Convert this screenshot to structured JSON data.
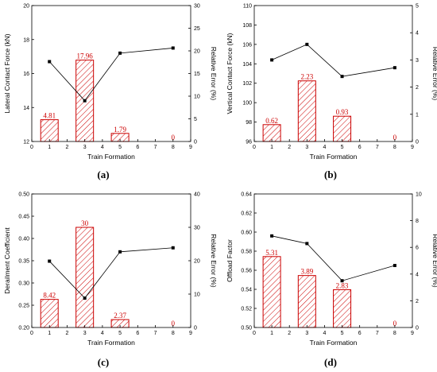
{
  "colors": {
    "bar": "#cc0000",
    "line": "#000000",
    "axis": "#000000"
  },
  "chart_data": [
    {
      "type": "bar",
      "sublabel": "(a)",
      "xlabel": "Train Formation",
      "ylabel": "Lateral Contact Force (kN)",
      "y2label": "Relative Error (%)",
      "xlim": [
        0,
        9
      ],
      "xticks": [
        "0",
        "1",
        "2",
        "3",
        "4",
        "5",
        "6",
        "7",
        "8",
        "9"
      ],
      "ylim": [
        12,
        20
      ],
      "yticks": [
        "12",
        "14",
        "16",
        "18",
        "20"
      ],
      "y2lim": [
        0,
        30
      ],
      "y2ticks": [
        "0",
        "5",
        "10",
        "15",
        "20",
        "25",
        "30"
      ],
      "bars": [
        {
          "x": 1,
          "value": 4.81,
          "label": "4.81"
        },
        {
          "x": 3,
          "value": 17.96,
          "label": "17.96"
        },
        {
          "x": 5,
          "value": 1.79,
          "label": "1.79"
        },
        {
          "x": 8,
          "value": 0,
          "label": "0"
        }
      ],
      "line": [
        {
          "x": 1,
          "y": 16.7
        },
        {
          "x": 3,
          "y": 14.4
        },
        {
          "x": 5,
          "y": 17.2
        },
        {
          "x": 8,
          "y": 17.5
        }
      ]
    },
    {
      "type": "bar",
      "sublabel": "(b)",
      "xlabel": "Train Formation",
      "ylabel": "Vertical Contact Force (kN)",
      "y2label": "Relative Error (%)",
      "xlim": [
        0,
        9
      ],
      "xticks": [
        "0",
        "1",
        "2",
        "3",
        "4",
        "5",
        "6",
        "7",
        "8",
        "9"
      ],
      "ylim": [
        96,
        110
      ],
      "yticks": [
        "96",
        "98",
        "100",
        "102",
        "104",
        "106",
        "108",
        "110"
      ],
      "y2lim": [
        0,
        5
      ],
      "y2ticks": [
        "0",
        "1",
        "2",
        "3",
        "4",
        "5"
      ],
      "bars": [
        {
          "x": 1,
          "value": 0.62,
          "label": "0.62"
        },
        {
          "x": 3,
          "value": 2.23,
          "label": "2.23"
        },
        {
          "x": 5,
          "value": 0.93,
          "label": "0.93"
        },
        {
          "x": 8,
          "value": 0,
          "label": "0"
        }
      ],
      "line": [
        {
          "x": 1,
          "y": 104.4
        },
        {
          "x": 3,
          "y": 106.0
        },
        {
          "x": 5,
          "y": 102.7
        },
        {
          "x": 8,
          "y": 103.6
        }
      ]
    },
    {
      "type": "bar",
      "sublabel": "(c)",
      "xlabel": "Train Formation",
      "ylabel": "Derailment Coefficient",
      "y2label": "Relative Error (%)",
      "xlim": [
        0,
        9
      ],
      "xticks": [
        "0",
        "1",
        "2",
        "3",
        "4",
        "5",
        "6",
        "7",
        "8",
        "9"
      ],
      "ylim": [
        0.2,
        0.5
      ],
      "yticks": [
        "0.20",
        "0.25",
        "0.30",
        "0.35",
        "0.40",
        "0.45",
        "0.50"
      ],
      "y2lim": [
        0,
        40
      ],
      "y2ticks": [
        "0",
        "10",
        "20",
        "30",
        "40"
      ],
      "bars": [
        {
          "x": 1,
          "value": 8.42,
          "label": "8.42"
        },
        {
          "x": 3,
          "value": 30,
          "label": "30"
        },
        {
          "x": 5,
          "value": 2.37,
          "label": "2.37"
        },
        {
          "x": 8,
          "value": 0,
          "label": "0"
        }
      ],
      "line": [
        {
          "x": 1,
          "y": 0.349
        },
        {
          "x": 3,
          "y": 0.266
        },
        {
          "x": 5,
          "y": 0.37
        },
        {
          "x": 8,
          "y": 0.379
        }
      ]
    },
    {
      "type": "bar",
      "sublabel": "(d)",
      "xlabel": "Train Formation",
      "ylabel": "Offload Factor",
      "y2label": "Relative Error (%)",
      "xlim": [
        0,
        9
      ],
      "xticks": [
        "0",
        "1",
        "2",
        "3",
        "4",
        "5",
        "6",
        "7",
        "8",
        "9"
      ],
      "ylim": [
        0.5,
        0.64
      ],
      "yticks": [
        "0.50",
        "0.52",
        "0.54",
        "0.56",
        "0.58",
        "0.60",
        "0.62",
        "0.64"
      ],
      "y2lim": [
        0,
        10
      ],
      "y2ticks": [
        "0",
        "2",
        "4",
        "6",
        "8",
        "10"
      ],
      "bars": [
        {
          "x": 1,
          "value": 5.31,
          "label": "5.31"
        },
        {
          "x": 3,
          "value": 3.89,
          "label": "3.89"
        },
        {
          "x": 5,
          "value": 2.83,
          "label": "2.83"
        },
        {
          "x": 8,
          "value": 0,
          "label": "0"
        }
      ],
      "line": [
        {
          "x": 1,
          "y": 0.596
        },
        {
          "x": 3,
          "y": 0.588
        },
        {
          "x": 5,
          "y": 0.549
        },
        {
          "x": 8,
          "y": 0.565
        }
      ]
    }
  ]
}
